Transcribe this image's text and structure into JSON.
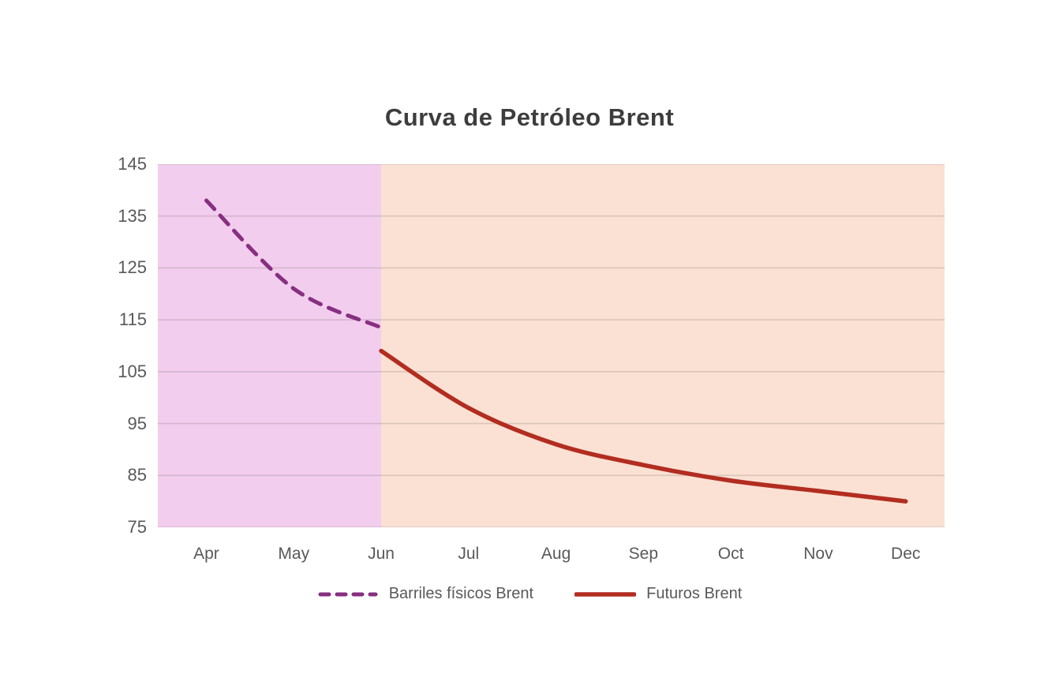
{
  "title": "Curva de Petróleo Brent",
  "chart_data": {
    "type": "line",
    "categories": [
      "Apr",
      "May",
      "Jun",
      "Jul",
      "Aug",
      "Sep",
      "Oct",
      "Nov",
      "Dec"
    ],
    "series": [
      {
        "name": "Barriles físicos Brent",
        "style": "dashed",
        "color": "#872f81",
        "x": [
          "Apr",
          "May",
          "Jun"
        ],
        "values": [
          138,
          121,
          113.5
        ]
      },
      {
        "name": "Futuros Brent",
        "style": "solid",
        "color": "#b22d20",
        "x": [
          "Jun",
          "Jul",
          "Aug",
          "Sep",
          "Oct",
          "Nov",
          "Dec"
        ],
        "values": [
          109,
          98,
          91,
          87,
          84,
          82,
          80
        ]
      }
    ],
    "ylim": [
      75,
      145
    ],
    "yticks": [
      75,
      85,
      95,
      105,
      115,
      125,
      135,
      145
    ],
    "grid": true,
    "legend_position": "bottom",
    "background_regions": [
      {
        "from": "plot-start",
        "to": "Jun",
        "color": "#f2cdee"
      },
      {
        "from": "Jun",
        "to": "plot-end",
        "color": "#fae1d3"
      }
    ]
  },
  "colors": {
    "title_text": "#3d3d3d",
    "axis_text": "#595959",
    "gridline": "rgba(120,95,95,0.22)",
    "background": "#ffffff"
  }
}
